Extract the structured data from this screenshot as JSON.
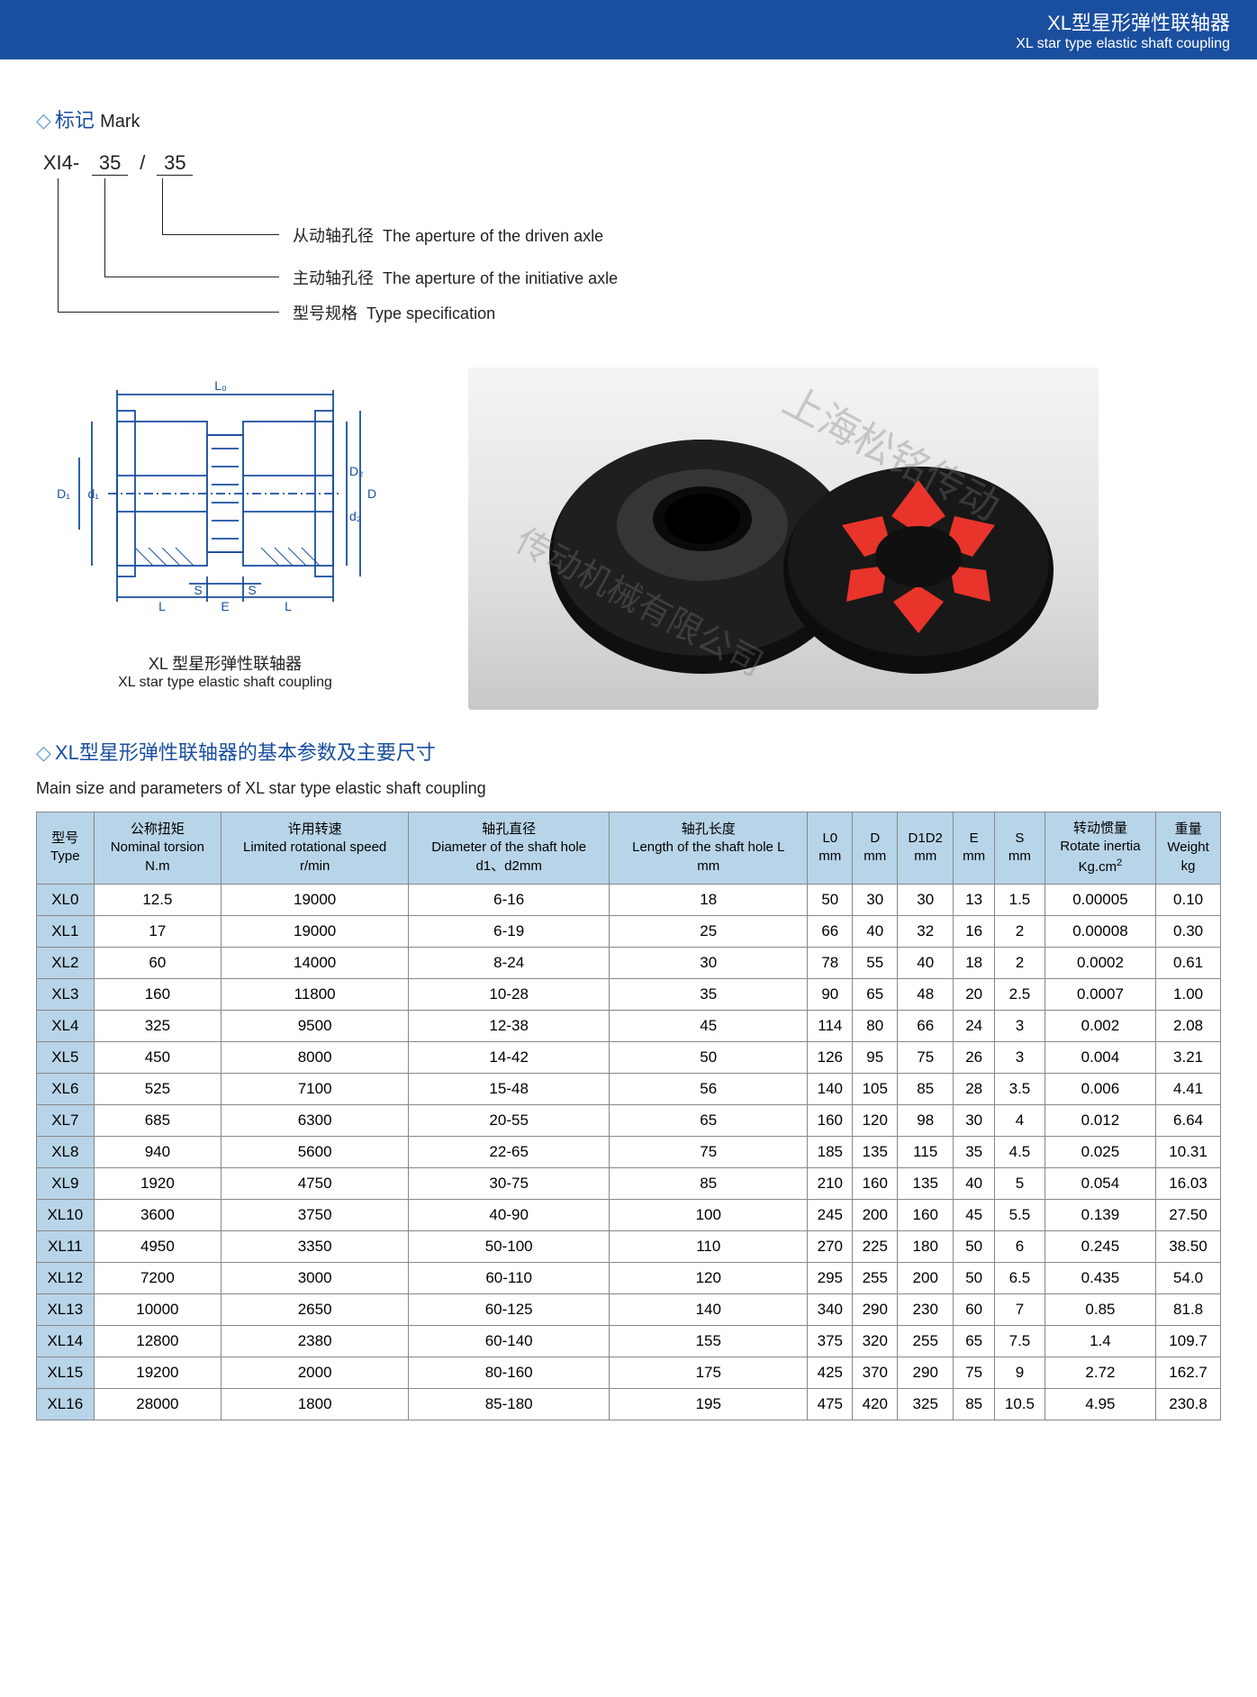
{
  "header": {
    "title_cn": "XL型星形弹性联轴器",
    "title_en": "XL star type elastic shaft coupling"
  },
  "mark": {
    "section_title_cn": "标记",
    "section_title_en": "Mark",
    "code_prefix": "XI4-",
    "code_v1": "35",
    "code_sep": "/",
    "code_v2": "35",
    "line3_cn": "从动轴孔径",
    "line3_en": "The aperture of the driven axle",
    "line2_cn": "主动轴孔径",
    "line2_en": "The aperture of the initiative axle",
    "line1_cn": "型号规格",
    "line1_en": "Type specification"
  },
  "drawing": {
    "stroke": "#1a4fa0",
    "caption_cn": "XL 型星形弹性联轴器",
    "caption_en": "XL star type elastic shaft coupling",
    "labels": {
      "L0": "L₀",
      "D": "D",
      "D1": "D₁",
      "D2": "D₂",
      "d1": "d₁",
      "d2": "d₂",
      "S": "S",
      "L": "L",
      "E": "E"
    }
  },
  "photo": {
    "watermark1": "上海松铭传动",
    "watermark2": "传动机械有限公司",
    "hub_color": "#1a1a1a",
    "spider_color": "#e8342a"
  },
  "params": {
    "title_cn": "XL型星形弹性联轴器的基本参数及主要尺寸",
    "title_en": "Main size and parameters of XL star type elastic shaft coupling",
    "columns": [
      {
        "cn": "型号",
        "en": "Type"
      },
      {
        "cn": "公称扭矩",
        "en": "Nominal torsion",
        "unit": "N.m"
      },
      {
        "cn": "许用转速",
        "en": "Limited rotational speed",
        "unit": "r/min"
      },
      {
        "cn": "轴孔直径",
        "en": "Diameter of the shaft hole",
        "unit": "d1、d2mm"
      },
      {
        "cn": "轴孔长度",
        "en": "Length of the shaft hole L",
        "unit": "mm"
      },
      {
        "cn": "L0",
        "unit": "mm"
      },
      {
        "cn": "D",
        "unit": "mm"
      },
      {
        "cn": "D1D2",
        "unit": "mm"
      },
      {
        "cn": "E",
        "unit": "mm"
      },
      {
        "cn": "S",
        "unit": "mm"
      },
      {
        "cn": "转动惯量",
        "en": "Rotate inertia",
        "unit": "Kg.cm²"
      },
      {
        "cn": "重量",
        "en": "Weight",
        "unit": "kg"
      }
    ],
    "rows": [
      [
        "XL0",
        "12.5",
        "19000",
        "6-16",
        "18",
        "50",
        "30",
        "30",
        "13",
        "1.5",
        "0.00005",
        "0.10"
      ],
      [
        "XL1",
        "17",
        "19000",
        "6-19",
        "25",
        "66",
        "40",
        "32",
        "16",
        "2",
        "0.00008",
        "0.30"
      ],
      [
        "XL2",
        "60",
        "14000",
        "8-24",
        "30",
        "78",
        "55",
        "40",
        "18",
        "2",
        "0.0002",
        "0.61"
      ],
      [
        "XL3",
        "160",
        "11800",
        "10-28",
        "35",
        "90",
        "65",
        "48",
        "20",
        "2.5",
        "0.0007",
        "1.00"
      ],
      [
        "XL4",
        "325",
        "9500",
        "12-38",
        "45",
        "114",
        "80",
        "66",
        "24",
        "3",
        "0.002",
        "2.08"
      ],
      [
        "XL5",
        "450",
        "8000",
        "14-42",
        "50",
        "126",
        "95",
        "75",
        "26",
        "3",
        "0.004",
        "3.21"
      ],
      [
        "XL6",
        "525",
        "7100",
        "15-48",
        "56",
        "140",
        "105",
        "85",
        "28",
        "3.5",
        "0.006",
        "4.41"
      ],
      [
        "XL7",
        "685",
        "6300",
        "20-55",
        "65",
        "160",
        "120",
        "98",
        "30",
        "4",
        "0.012",
        "6.64"
      ],
      [
        "XL8",
        "940",
        "5600",
        "22-65",
        "75",
        "185",
        "135",
        "115",
        "35",
        "4.5",
        "0.025",
        "10.31"
      ],
      [
        "XL9",
        "1920",
        "4750",
        "30-75",
        "85",
        "210",
        "160",
        "135",
        "40",
        "5",
        "0.054",
        "16.03"
      ],
      [
        "XL10",
        "3600",
        "3750",
        "40-90",
        "100",
        "245",
        "200",
        "160",
        "45",
        "5.5",
        "0.139",
        "27.50"
      ],
      [
        "XL11",
        "4950",
        "3350",
        "50-100",
        "110",
        "270",
        "225",
        "180",
        "50",
        "6",
        "0.245",
        "38.50"
      ],
      [
        "XL12",
        "7200",
        "3000",
        "60-110",
        "120",
        "295",
        "255",
        "200",
        "50",
        "6.5",
        "0.435",
        "54.0"
      ],
      [
        "XL13",
        "10000",
        "2650",
        "60-125",
        "140",
        "340",
        "290",
        "230",
        "60",
        "7",
        "0.85",
        "81.8"
      ],
      [
        "XL14",
        "12800",
        "2380",
        "60-140",
        "155",
        "375",
        "320",
        "255",
        "65",
        "7.5",
        "1.4",
        "109.7"
      ],
      [
        "XL15",
        "19200",
        "2000",
        "80-160",
        "175",
        "425",
        "370",
        "290",
        "75",
        "9",
        "2.72",
        "162.7"
      ],
      [
        "XL16",
        "28000",
        "1800",
        "85-180",
        "195",
        "475",
        "420",
        "325",
        "85",
        "10.5",
        "4.95",
        "230.8"
      ]
    ]
  },
  "colors": {
    "header_bg": "#1a4fa0",
    "table_header_bg": "#b8d4e8",
    "border": "#888888",
    "accent": "#1a4fa0"
  }
}
